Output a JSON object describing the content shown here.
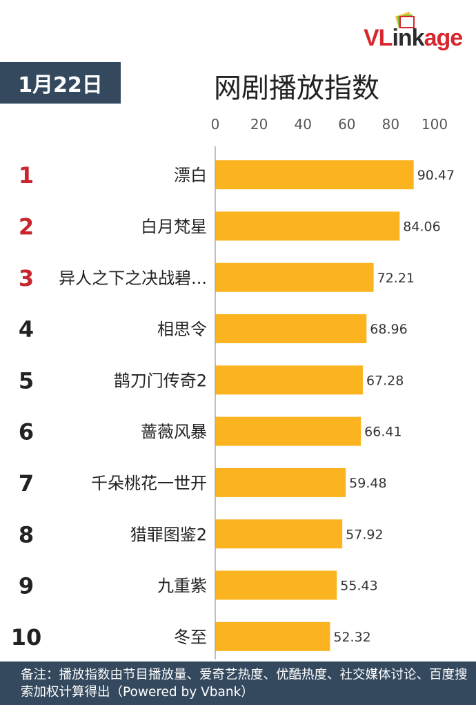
{
  "badge": {
    "date": "1月22日"
  },
  "header": {
    "title": "网剧播放指数"
  },
  "logo": {
    "text_accent": "VL",
    "text_rest": "ink",
    "text_tail": "age",
    "accent_color": "#d7262d",
    "rest_color": "#2c2c2c"
  },
  "colors": {
    "bar": "#fbb41f",
    "rank_top3": "#c9252c",
    "rank_rest": "#222222",
    "panel": "#34495e"
  },
  "chart_data": {
    "type": "bar",
    "orientation": "horizontal",
    "title": "网剧播放指数",
    "xlim": [
      0,
      100
    ],
    "xticks": [
      0,
      20,
      40,
      60,
      80,
      100
    ],
    "grid": false,
    "items": [
      {
        "rank": "1",
        "name": "漂白",
        "value": 90.47,
        "label": "90.47"
      },
      {
        "rank": "2",
        "name": "白月梵星",
        "value": 84.06,
        "label": "84.06"
      },
      {
        "rank": "3",
        "name": "异人之下之决战碧...",
        "value": 72.21,
        "label": "72.21"
      },
      {
        "rank": "4",
        "name": "相思令",
        "value": 68.96,
        "label": "68.96"
      },
      {
        "rank": "5",
        "name": "鹊刀门传奇2",
        "value": 67.28,
        "label": "67.28"
      },
      {
        "rank": "6",
        "name": "蔷薇风暴",
        "value": 66.41,
        "label": "66.41"
      },
      {
        "rank": "7",
        "name": "千朵桃花一世开",
        "value": 59.48,
        "label": "59.48"
      },
      {
        "rank": "8",
        "name": "猎罪图鉴2",
        "value": 57.92,
        "label": "57.92"
      },
      {
        "rank": "9",
        "name": "九重紫",
        "value": 55.43,
        "label": "55.43"
      },
      {
        "rank": "10",
        "name": "冬至",
        "value": 52.32,
        "label": "52.32"
      }
    ]
  },
  "footnote": {
    "text": "备注：播放指数由节目播放量、爱奇艺热度、优酷热度、社交媒体讨论、百度搜索加权计算得出（Powered by Vbank）"
  }
}
